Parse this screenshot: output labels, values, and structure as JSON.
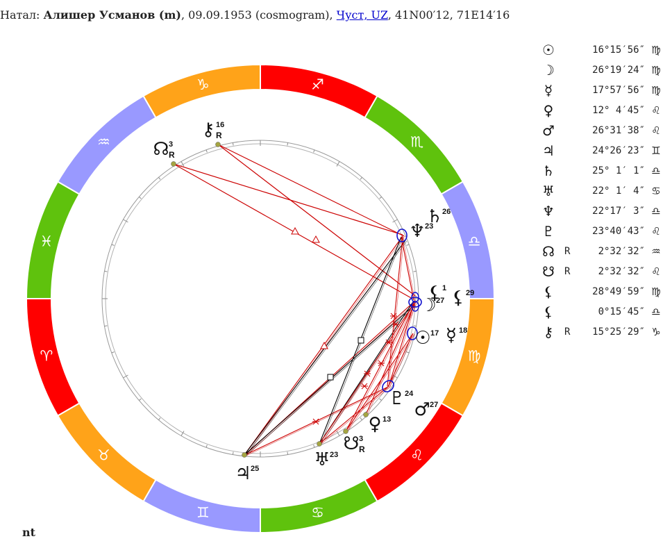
{
  "header": {
    "prefix": "Натал: ",
    "name": "Алишер Усманов (m)",
    "details": ", 09.09.1953 (cosmogram), ",
    "place_link": "Чуст, UZ",
    "coords": ", 41N00′12, 71E14′16"
  },
  "footer": {
    "label": "nt"
  },
  "colors": {
    "fire": "#ff0000",
    "earth": "#ffa319",
    "air": "#9999ff",
    "water": "#5fc20d",
    "aspect_red": "#cc0000",
    "aspect_black": "#000000",
    "body_dot": "#a5a542",
    "ring": "#9a9a9a"
  },
  "zodiac": [
    {
      "sign": "sagittarius",
      "glyph": "♐",
      "element": "fire"
    },
    {
      "sign": "scorpio",
      "glyph": "♏",
      "element": "water"
    },
    {
      "sign": "libra",
      "glyph": "♎",
      "element": "air"
    },
    {
      "sign": "virgo",
      "glyph": "♍",
      "element": "earth"
    },
    {
      "sign": "leo",
      "glyph": "♌",
      "element": "fire"
    },
    {
      "sign": "cancer",
      "glyph": "♋",
      "element": "water"
    },
    {
      "sign": "gemini",
      "glyph": "♊",
      "element": "air"
    },
    {
      "sign": "taurus",
      "glyph": "♉",
      "element": "earth"
    },
    {
      "sign": "aries",
      "glyph": "♈",
      "element": "fire"
    },
    {
      "sign": "pisces",
      "glyph": "♓",
      "element": "water"
    },
    {
      "sign": "aquarius",
      "glyph": "♒",
      "element": "air"
    },
    {
      "sign": "capricorn",
      "glyph": "♑",
      "element": "earth"
    }
  ],
  "bodies": [
    {
      "id": "sun",
      "glyph": "☉",
      "deg": "17",
      "retro": "",
      "icon": "sun-icon"
    },
    {
      "id": "moon",
      "glyph": "☽",
      "deg": "27",
      "retro": "",
      "icon": "moon-icon"
    },
    {
      "id": "mercury",
      "glyph": "☿",
      "deg": "18",
      "retro": "",
      "icon": "mercury-icon"
    },
    {
      "id": "venus",
      "glyph": "♀",
      "deg": "13",
      "retro": "",
      "icon": "venus-icon"
    },
    {
      "id": "mars",
      "glyph": "♂",
      "deg": "27",
      "retro": "",
      "icon": "mars-icon"
    },
    {
      "id": "jupiter",
      "glyph": "♃",
      "deg": "25",
      "retro": "",
      "icon": "jupiter-icon"
    },
    {
      "id": "saturn",
      "glyph": "♄",
      "deg": "26",
      "retro": "",
      "icon": "saturn-icon"
    },
    {
      "id": "uranus",
      "glyph": "♅",
      "deg": "23",
      "retro": "",
      "icon": "uranus-icon"
    },
    {
      "id": "neptune",
      "glyph": "♆",
      "deg": "23",
      "retro": "",
      "icon": "neptune-icon"
    },
    {
      "id": "pluto",
      "glyph": "♇",
      "deg": "24",
      "retro": "",
      "icon": "pluto-icon"
    },
    {
      "id": "north-node",
      "glyph": "☊",
      "deg": "3",
      "retro": "R",
      "icon": "north-node-icon"
    },
    {
      "id": "south-node",
      "glyph": "☋",
      "deg": "3",
      "retro": "R",
      "icon": "south-node-icon"
    },
    {
      "id": "lilith",
      "glyph": "⚸",
      "deg": "29",
      "retro": "",
      "icon": "lilith-icon"
    },
    {
      "id": "selena",
      "glyph": "⚸",
      "deg": "1",
      "retro": "",
      "icon": "selena-icon"
    },
    {
      "id": "chiron",
      "glyph": "⚷",
      "deg": "16",
      "retro": "R",
      "icon": "chiron-icon"
    }
  ],
  "legend": [
    {
      "glyph": "☉",
      "icon": "sun-icon",
      "retro": "",
      "pos": "16°15′56″",
      "sign": "♍"
    },
    {
      "glyph": "☽",
      "icon": "moon-icon",
      "retro": "",
      "pos": "26°19′24″",
      "sign": "♍"
    },
    {
      "glyph": "☿",
      "icon": "mercury-icon",
      "retro": "",
      "pos": "17°57′56″",
      "sign": "♍"
    },
    {
      "glyph": "♀",
      "icon": "venus-icon",
      "retro": "",
      "pos": "12° 4′45″",
      "sign": "♌"
    },
    {
      "glyph": "♂",
      "icon": "mars-icon",
      "retro": "",
      "pos": "26°31′38″",
      "sign": "♌"
    },
    {
      "glyph": "♃",
      "icon": "jupiter-icon",
      "retro": "",
      "pos": "24°26′23″",
      "sign": "♊"
    },
    {
      "glyph": "♄",
      "icon": "saturn-icon",
      "retro": "",
      "pos": "25° 1′ 1″",
      "sign": "♎"
    },
    {
      "glyph": "♅",
      "icon": "uranus-icon",
      "retro": "",
      "pos": "22° 1′ 4″",
      "sign": "♋"
    },
    {
      "glyph": "♆",
      "icon": "neptune-icon",
      "retro": "",
      "pos": "22°17′ 3″",
      "sign": "♎"
    },
    {
      "glyph": "♇",
      "icon": "pluto-icon",
      "retro": "",
      "pos": "23°40′43″",
      "sign": "♌"
    },
    {
      "glyph": "☊",
      "icon": "north-node-icon",
      "retro": "R",
      "pos": "2°32′32″",
      "sign": "♒"
    },
    {
      "glyph": "☋",
      "icon": "south-node-icon",
      "retro": "R",
      "pos": "2°32′32″",
      "sign": "♌"
    },
    {
      "glyph": "⚸",
      "icon": "lilith-icon",
      "retro": "",
      "pos": "28°49′59″",
      "sign": "♍"
    },
    {
      "glyph": "⚸",
      "icon": "selena-icon",
      "retro": "",
      "pos": "0°15′45″",
      "sign": "♎"
    },
    {
      "glyph": "⚷",
      "icon": "chiron-icon",
      "retro": "R",
      "pos": "15°25′29″",
      "sign": "♑"
    }
  ]
}
